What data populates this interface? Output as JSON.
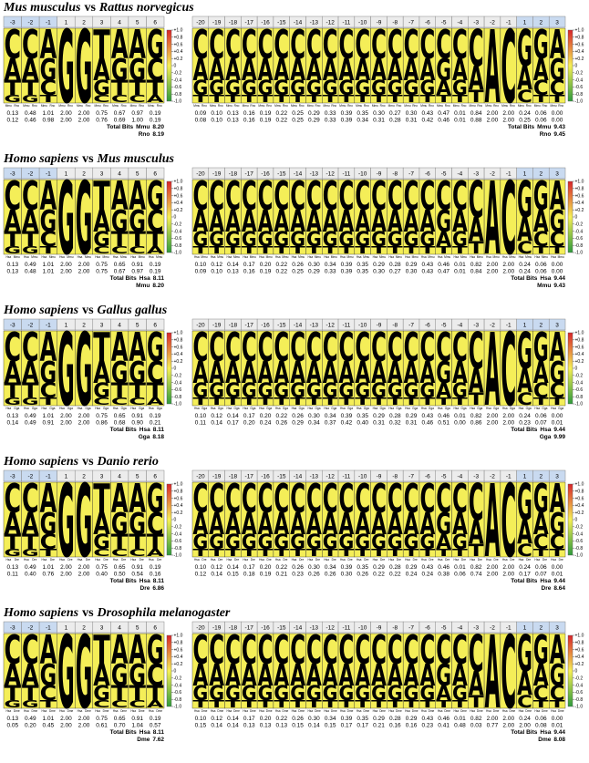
{
  "vs": "vs",
  "total_label": "Total Bits",
  "scale_ticks": [
    {
      "value": 1.0,
      "label": "+1.0"
    },
    {
      "value": 0.8,
      "label": "+0.8"
    },
    {
      "value": 0.6,
      "label": "+0.6"
    },
    {
      "value": 0.4,
      "label": "+0.4"
    },
    {
      "value": 0.2,
      "label": "+0.2"
    },
    {
      "value": 0,
      "label": "0"
    },
    {
      "value": -0.2,
      "label": "-0.2"
    },
    {
      "value": -0.4,
      "label": "-0.4"
    },
    {
      "value": -0.6,
      "label": "-0.6"
    },
    {
      "value": -0.8,
      "label": "-0.8"
    },
    {
      "value": -1.0,
      "label": "-1.0"
    }
  ],
  "left_positions": [
    "-3",
    "-2",
    "-1",
    "1",
    "2",
    "3",
    "4",
    "5",
    "6"
  ],
  "right_positions": [
    "-20",
    "-19",
    "-18",
    "-17",
    "-16",
    "-15",
    "-14",
    "-13",
    "-12",
    "-11",
    "-10",
    "-9",
    "-8",
    "-7",
    "-6",
    "-5",
    "-4",
    "-3",
    "-2",
    "-1",
    "1",
    "2",
    "3"
  ],
  "left_letters": [
    [
      "C",
      "A",
      "T",
      "G"
    ],
    [
      "C",
      "A",
      "T",
      "G"
    ],
    [
      "A",
      "G",
      "C",
      "T"
    ],
    [
      "G"
    ],
    [
      "G"
    ],
    [
      "T",
      "A",
      "G",
      "C"
    ],
    [
      "A",
      "G",
      "T",
      "C"
    ],
    [
      "A",
      "G",
      "T",
      "C"
    ],
    [
      "G",
      "C",
      "T",
      "A"
    ]
  ],
  "right_letters": [
    [
      "C",
      "A",
      "G",
      "T"
    ],
    [
      "C",
      "A",
      "G",
      "T"
    ],
    [
      "C",
      "A",
      "G",
      "T"
    ],
    [
      "C",
      "A",
      "G",
      "T"
    ],
    [
      "C",
      "A",
      "G",
      "T"
    ],
    [
      "C",
      "A",
      "G",
      "T"
    ],
    [
      "C",
      "A",
      "G",
      "T"
    ],
    [
      "C",
      "A",
      "G",
      "T"
    ],
    [
      "C",
      "A",
      "G",
      "T"
    ],
    [
      "C",
      "A",
      "G",
      "T"
    ],
    [
      "C",
      "A",
      "G",
      "T"
    ],
    [
      "C",
      "A",
      "G",
      "T"
    ],
    [
      "C",
      "A",
      "G",
      "T"
    ],
    [
      "C",
      "A",
      "G",
      "T"
    ],
    [
      "C",
      "A",
      "G",
      "T"
    ],
    [
      "C",
      "G",
      "A",
      "T"
    ],
    [
      "C",
      "A",
      "G",
      "T"
    ],
    [
      "C",
      "A",
      "T"
    ],
    [
      "A"
    ],
    [
      "C"
    ],
    [
      "G",
      "A",
      "C"
    ],
    [
      "G",
      "A",
      "C",
      "T"
    ],
    [
      "A",
      "G",
      "C",
      "T"
    ]
  ],
  "panels": [
    {
      "species_a": "Mus musculus",
      "species_b": "Rattus norvegicus",
      "codes": [
        "Mmu",
        "Rno"
      ],
      "left": {
        "bits": [
          [
            "0.13",
            "0.48",
            "1.01",
            "2.00",
            "2.00",
            "0.75",
            "0.67",
            "0.97",
            "0.19"
          ],
          [
            "0.12",
            "0.46",
            "0.98",
            "2.00",
            "2.00",
            "0.76",
            "0.69",
            "1.00",
            "0.19"
          ]
        ],
        "totals": [
          "8.20",
          "8.19"
        ]
      },
      "right": {
        "bits": [
          [
            "0.09",
            "0.10",
            "0.13",
            "0.16",
            "0.19",
            "0.22",
            "0.25",
            "0.29",
            "0.33",
            "0.39",
            "0.35",
            "0.30",
            "0.27",
            "0.30",
            "0.43",
            "0.47",
            "0.01",
            "0.84",
            "2.00",
            "2.00",
            "0.24",
            "0.06",
            "0.00"
          ],
          [
            "0.08",
            "0.10",
            "0.13",
            "0.16",
            "0.19",
            "0.22",
            "0.25",
            "0.29",
            "0.33",
            "0.39",
            "0.34",
            "0.31",
            "0.28",
            "0.31",
            "0.42",
            "0.46",
            "0.01",
            "0.88",
            "2.00",
            "2.00",
            "0.25",
            "0.06",
            "0.00"
          ]
        ],
        "totals": [
          "9.43",
          "9.45"
        ]
      }
    },
    {
      "species_a": "Homo sapiens",
      "species_b": "Mus musculus",
      "codes": [
        "Hsa",
        "Mmu"
      ],
      "left": {
        "bits": [
          [
            "0.13",
            "0.49",
            "1.01",
            "2.00",
            "2.00",
            "0.75",
            "0.65",
            "0.91",
            "0.19"
          ],
          [
            "0.13",
            "0.48",
            "1.01",
            "2.00",
            "2.00",
            "0.75",
            "0.67",
            "0.97",
            "0.19"
          ]
        ],
        "totals": [
          "8.11",
          "8.20"
        ]
      },
      "right": {
        "bits": [
          [
            "0.10",
            "0.12",
            "0.14",
            "0.17",
            "0.20",
            "0.22",
            "0.26",
            "0.30",
            "0.34",
            "0.39",
            "0.35",
            "0.29",
            "0.28",
            "0.29",
            "0.43",
            "0.46",
            "0.01",
            "0.82",
            "2.00",
            "2.00",
            "0.24",
            "0.06",
            "0.00"
          ],
          [
            "0.09",
            "0.10",
            "0.13",
            "0.16",
            "0.19",
            "0.22",
            "0.25",
            "0.29",
            "0.33",
            "0.39",
            "0.35",
            "0.30",
            "0.27",
            "0.30",
            "0.43",
            "0.47",
            "0.01",
            "0.84",
            "2.00",
            "2.00",
            "0.24",
            "0.06",
            "0.00"
          ]
        ],
        "totals": [
          "9.44",
          "9.43"
        ]
      }
    },
    {
      "species_a": "Homo sapiens",
      "species_b": "Gallus gallus",
      "codes": [
        "Hsa",
        "Gga"
      ],
      "left": {
        "bits": [
          [
            "0.13",
            "0.49",
            "1.01",
            "2.00",
            "2.00",
            "0.75",
            "0.65",
            "0.91",
            "0.19"
          ],
          [
            "0.14",
            "0.49",
            "0.91",
            "2.00",
            "2.00",
            "0.86",
            "0.68",
            "0.90",
            "0.21"
          ]
        ],
        "totals": [
          "8.11",
          "8.18"
        ]
      },
      "right": {
        "bits": [
          [
            "0.10",
            "0.12",
            "0.14",
            "0.17",
            "0.20",
            "0.22",
            "0.26",
            "0.30",
            "0.34",
            "0.39",
            "0.35",
            "0.29",
            "0.28",
            "0.29",
            "0.43",
            "0.46",
            "0.01",
            "0.82",
            "2.00",
            "2.00",
            "0.24",
            "0.06",
            "0.00"
          ],
          [
            "0.11",
            "0.14",
            "0.17",
            "0.20",
            "0.24",
            "0.26",
            "0.29",
            "0.34",
            "0.37",
            "0.42",
            "0.40",
            "0.31",
            "0.32",
            "0.31",
            "0.46",
            "0.51",
            "0.00",
            "0.86",
            "2.00",
            "2.00",
            "0.23",
            "0.07",
            "0.01"
          ]
        ],
        "totals": [
          "9.44",
          "9.99"
        ]
      }
    },
    {
      "species_a": "Homo sapiens",
      "species_b": "Danio rerio",
      "codes": [
        "Hsa",
        "Dre"
      ],
      "left": {
        "bits": [
          [
            "0.13",
            "0.49",
            "1.01",
            "2.00",
            "2.00",
            "0.75",
            "0.65",
            "0.91",
            "0.19"
          ],
          [
            "0.11",
            "0.40",
            "0.76",
            "2.00",
            "2.00",
            "0.40",
            "0.50",
            "0.54",
            "0.16"
          ]
        ],
        "totals": [
          "8.11",
          "6.86"
        ]
      },
      "right": {
        "bits": [
          [
            "0.10",
            "0.12",
            "0.14",
            "0.17",
            "0.20",
            "0.22",
            "0.26",
            "0.30",
            "0.34",
            "0.39",
            "0.35",
            "0.29",
            "0.28",
            "0.29",
            "0.43",
            "0.46",
            "0.01",
            "0.82",
            "2.00",
            "2.00",
            "0.24",
            "0.06",
            "0.00"
          ],
          [
            "0.12",
            "0.14",
            "0.15",
            "0.18",
            "0.19",
            "0.21",
            "0.23",
            "0.26",
            "0.26",
            "0.30",
            "0.26",
            "0.22",
            "0.22",
            "0.24",
            "0.24",
            "0.38",
            "0.06",
            "0.74",
            "2.00",
            "2.00",
            "0.17",
            "0.07",
            "0.01"
          ]
        ],
        "totals": [
          "9.44",
          "8.64"
        ]
      }
    },
    {
      "species_a": "Homo sapiens",
      "species_b": "Drosophila melanogaster",
      "codes": [
        "Hsa",
        "Dme"
      ],
      "left": {
        "bits": [
          [
            "0.13",
            "0.49",
            "1.01",
            "2.00",
            "2.00",
            "0.75",
            "0.65",
            "0.91",
            "0.19"
          ],
          [
            "0.05",
            "0.20",
            "0.45",
            "2.00",
            "2.00",
            "0.61",
            "0.70",
            "1.04",
            "0.57"
          ]
        ],
        "totals": [
          "8.11",
          "7.62"
        ]
      },
      "right": {
        "bits": [
          [
            "0.10",
            "0.12",
            "0.14",
            "0.17",
            "0.20",
            "0.22",
            "0.26",
            "0.30",
            "0.34",
            "0.39",
            "0.35",
            "0.29",
            "0.28",
            "0.29",
            "0.43",
            "0.46",
            "0.01",
            "0.82",
            "2.00",
            "2.00",
            "0.24",
            "0.06",
            "0.00"
          ],
          [
            "0.15",
            "0.14",
            "0.14",
            "0.13",
            "0.13",
            "0.13",
            "0.15",
            "0.14",
            "0.15",
            "0.17",
            "0.17",
            "0.21",
            "0.16",
            "0.16",
            "0.23",
            "0.41",
            "0.48",
            "0.03",
            "0.77",
            "2.00",
            "2.00",
            "0.08",
            "0.01"
          ]
        ],
        "totals": [
          "9.44",
          "8.08"
        ]
      }
    }
  ]
}
